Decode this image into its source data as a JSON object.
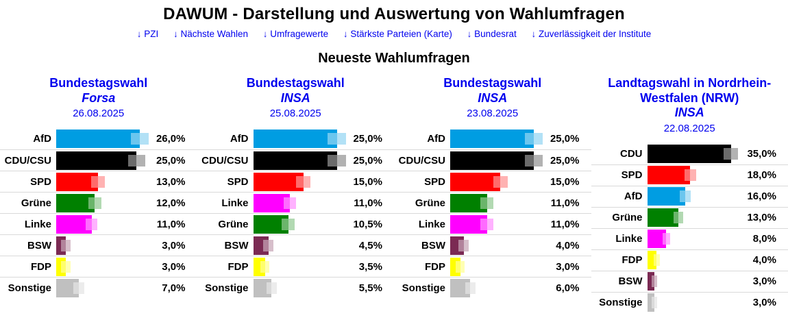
{
  "header": {
    "title": "DAWUM - Darstellung und Auswertung von Wahlumfragen",
    "nav": [
      {
        "label": "↓ PZI"
      },
      {
        "label": "↓ Nächste Wahlen"
      },
      {
        "label": "↓ Umfragewerte"
      },
      {
        "label": "↓ Stärkste Parteien (Karte)"
      },
      {
        "label": "↓ Bundesrat"
      },
      {
        "label": "↓ Zuverlässigkeit der Institute"
      }
    ]
  },
  "section_title": "Neueste Wahlumfragen",
  "accent_color": "#0000EE",
  "separator_color": "#D9D9D9",
  "party_colors": {
    "AfD": "#009DE2",
    "CDU/CSU": "#000000",
    "CDU": "#000000",
    "SPD": "#FF0000",
    "Grüne": "#008000",
    "Linke": "#FF00FF",
    "BSW": "#7B2A53",
    "FDP": "#FFFF00",
    "Sonstige": "#C0C0C0"
  },
  "chart_data": [
    {
      "type": "bar",
      "orientation": "horizontal",
      "grid": false,
      "title": "Bundestagswahl",
      "institute": "Forsa",
      "date": "26.08.2025",
      "categories": [
        "AfD",
        "CDU/CSU",
        "SPD",
        "Grüne",
        "Linke",
        "BSW",
        "FDP",
        "Sonstige"
      ],
      "values": [
        26.0,
        25.0,
        13.0,
        12.0,
        11.0,
        3.0,
        3.0,
        7.0
      ],
      "value_labels": [
        "26,0%",
        "25,0%",
        "13,0%",
        "12,0%",
        "11,0%",
        "3,0%",
        "3,0%",
        "7,0%"
      ],
      "error_margins_est": [
        2.7,
        2.7,
        2.1,
        2.0,
        1.9,
        1.5,
        1.5,
        1.7
      ]
    },
    {
      "type": "bar",
      "orientation": "horizontal",
      "grid": false,
      "title": "Bundestagswahl",
      "institute": "INSA",
      "date": "25.08.2025",
      "categories": [
        "AfD",
        "CDU/CSU",
        "SPD",
        "Linke",
        "Grüne",
        "BSW",
        "FDP",
        "Sonstige"
      ],
      "values": [
        25.0,
        25.0,
        15.0,
        11.0,
        10.5,
        4.5,
        3.5,
        5.5
      ],
      "value_labels": [
        "25,0%",
        "25,0%",
        "15,0%",
        "11,0%",
        "10,5%",
        "4,5%",
        "3,5%",
        "5,5%"
      ],
      "error_margins_est": [
        2.7,
        2.7,
        2.2,
        1.9,
        1.9,
        1.5,
        1.4,
        1.5
      ]
    },
    {
      "type": "bar",
      "orientation": "horizontal",
      "grid": false,
      "title": "Bundestagswahl",
      "institute": "INSA",
      "date": "23.08.2025",
      "categories": [
        "AfD",
        "CDU/CSU",
        "SPD",
        "Grüne",
        "Linke",
        "BSW",
        "FDP",
        "Sonstige"
      ],
      "values": [
        25.0,
        25.0,
        15.0,
        11.0,
        11.0,
        4.0,
        3.0,
        6.0
      ],
      "value_labels": [
        "25,0%",
        "25,0%",
        "15,0%",
        "11,0%",
        "11,0%",
        "4,0%",
        "3,0%",
        "6,0%"
      ],
      "error_margins_est": [
        2.7,
        2.7,
        2.2,
        1.9,
        1.9,
        1.5,
        1.4,
        1.5
      ]
    },
    {
      "type": "bar",
      "orientation": "horizontal",
      "grid": false,
      "title": "Landtagswahl in Nordrhein-Westfalen (NRW)",
      "institute": "INSA",
      "date": "22.08.2025",
      "categories": [
        "CDU",
        "SPD",
        "AfD",
        "Grüne",
        "Linke",
        "FDP",
        "BSW",
        "Sonstige"
      ],
      "values": [
        35.0,
        18.0,
        16.0,
        13.0,
        8.0,
        4.0,
        3.0,
        3.0
      ],
      "value_labels": [
        "35,0%",
        "18,0%",
        "16,0%",
        "13,0%",
        "8,0%",
        "4,0%",
        "3,0%",
        "3,0%"
      ],
      "error_margins_est": [
        3.0,
        2.4,
        2.3,
        2.1,
        1.7,
        1.3,
        1.2,
        1.2
      ]
    }
  ]
}
